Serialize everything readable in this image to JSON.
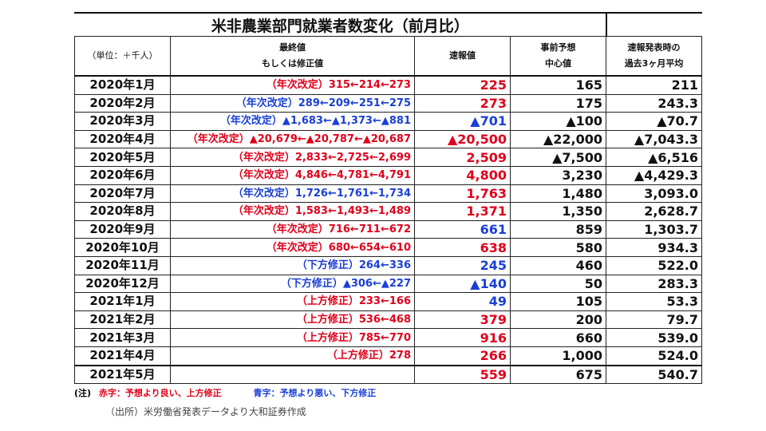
{
  "title": "米非農業部門就業者数変化（前月比）",
  "headers": {
    "unit": "（単位：＋千人）",
    "final_line1": "最終値",
    "final_line2": "もしくは修正値",
    "flash": "速報値",
    "forecast_line1": "事前予想",
    "forecast_line2": "中心値",
    "avg_line1": "速報発表時の",
    "avg_line2": "過去3ヶ月平均"
  },
  "rows": [
    {
      "month": "2020年1月",
      "final": "（年次改定）315←214←273",
      "final_color": "red",
      "flash": "225",
      "flash_color": "red",
      "forecast": "165",
      "avg": "211"
    },
    {
      "month": "2020年2月",
      "final": "（年次改定）289←209←251←275",
      "final_color": "blue",
      "flash": "273",
      "flash_color": "red",
      "forecast": "175",
      "avg": "243.3"
    },
    {
      "month": "2020年3月",
      "final": "（年次改定）▲1,683←▲1,373←▲881",
      "final_color": "blue",
      "flash": "▲701",
      "flash_color": "blue",
      "forecast": "▲100",
      "avg": "▲70.7"
    },
    {
      "month": "2020年4月",
      "final": "（年次改定）▲20,679←▲20,787←▲20,687",
      "final_color": "red",
      "flash": "▲20,500",
      "flash_color": "red",
      "forecast": "▲22,000",
      "avg": "▲7,043.3"
    },
    {
      "month": "2020年5月",
      "final": "（年次改定）2,833←2,725←2,699",
      "final_color": "red",
      "flash": "2,509",
      "flash_color": "red",
      "forecast": "▲7,500",
      "avg": "▲6,516"
    },
    {
      "month": "2020年6月",
      "final": "（年次改定）4,846←4,781←4,791",
      "final_color": "red",
      "flash": "4,800",
      "flash_color": "red",
      "forecast": "3,230",
      "avg": "▲4,429.3"
    },
    {
      "month": "2020年7月",
      "final": "（年次改定）1,726←1,761←1,734",
      "final_color": "blue",
      "flash": "1,763",
      "flash_color": "red",
      "forecast": "1,480",
      "avg": "3,093.0"
    },
    {
      "month": "2020年8月",
      "final": "（年次改定）1,583←1,493←1,489",
      "final_color": "red",
      "flash": "1,371",
      "flash_color": "red",
      "forecast": "1,350",
      "avg": "2,628.7"
    },
    {
      "month": "2020年9月",
      "final": "（年次改定）716←711←672",
      "final_color": "red",
      "flash": "661",
      "flash_color": "blue",
      "forecast": "859",
      "avg": "1,303.7"
    },
    {
      "month": "2020年10月",
      "final": "（年次改定）680←654←610",
      "final_color": "red",
      "flash": "638",
      "flash_color": "red",
      "forecast": "580",
      "avg": "934.3"
    },
    {
      "month": "2020年11月",
      "final": "（下方修正）264←336",
      "final_color": "blue",
      "flash": "245",
      "flash_color": "blue",
      "forecast": "460",
      "avg": "522.0"
    },
    {
      "month": "2020年12月",
      "final": "（下方修正）▲306←▲227",
      "final_color": "blue",
      "flash": "▲140",
      "flash_color": "blue",
      "forecast": "50",
      "avg": "283.3"
    },
    {
      "month": "2021年1月",
      "final": "（上方修正）233←166",
      "final_color": "red",
      "flash": "49",
      "flash_color": "blue",
      "forecast": "105",
      "avg": "53.3"
    },
    {
      "month": "2021年2月",
      "final": "（上方修正）536←468",
      "final_color": "red",
      "flash": "379",
      "flash_color": "red",
      "forecast": "200",
      "avg": "79.7"
    },
    {
      "month": "2021年3月",
      "final": "（上方修正）785←770",
      "final_color": "red",
      "flash": "916",
      "flash_color": "red",
      "forecast": "660",
      "avg": "539.0"
    },
    {
      "month": "2021年4月",
      "final": "（上方修正）278",
      "final_color": "red",
      "flash": "266",
      "flash_color": "red",
      "forecast": "1,000",
      "avg": "524.0"
    },
    {
      "month": "2021年5月",
      "final": "",
      "final_color": "red",
      "flash": "559",
      "flash_color": "red",
      "forecast": "675",
      "avg": "540.7"
    }
  ],
  "note": {
    "prefix": "(注)",
    "red_text": "赤字：予想より良い、上方修正",
    "blue_text": "青字：予想より悪い、下方修正"
  },
  "source": "（出所）米労働省発表データより大和証券作成",
  "colors": {
    "red": "#e0001b",
    "blue": "#1a3fd6"
  }
}
